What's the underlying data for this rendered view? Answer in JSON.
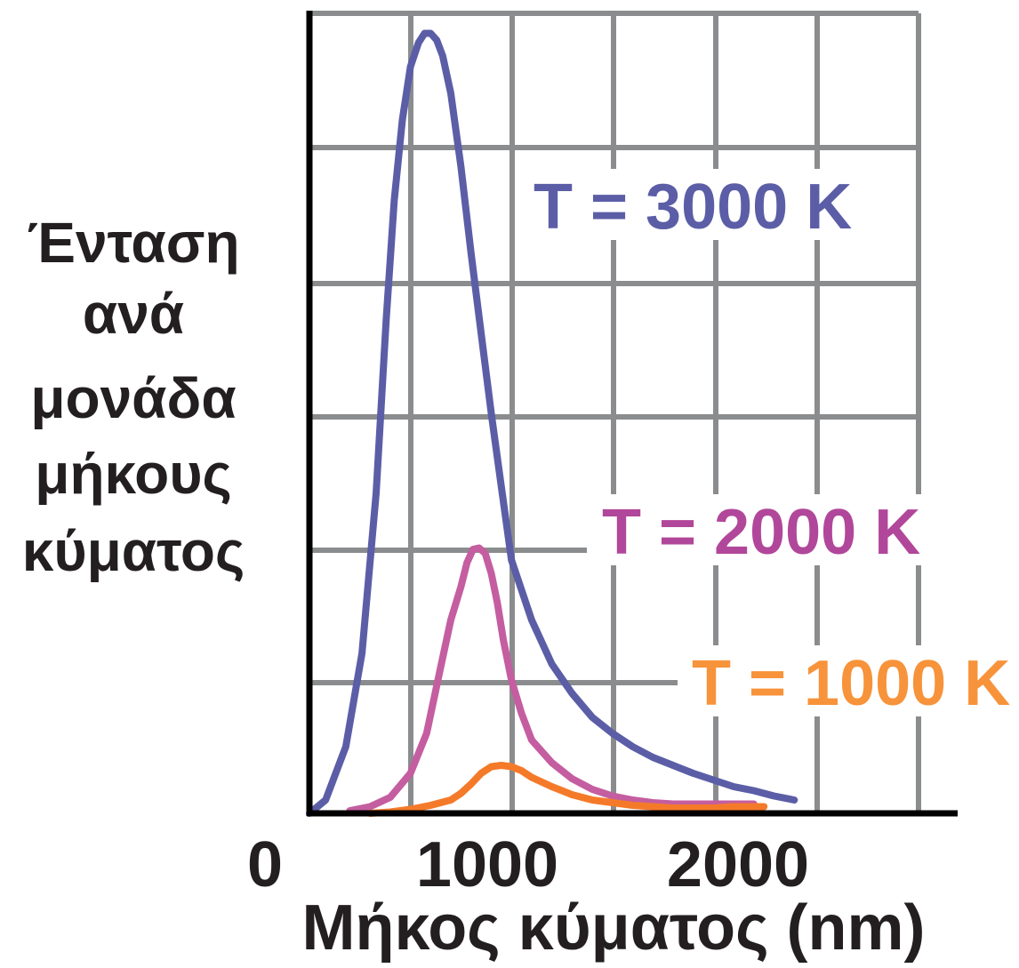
{
  "chart_data": {
    "type": "line",
    "ylabel_lines": [
      "Ένταση",
      "ανά",
      "μονάδα",
      "μήκους",
      "κύματος"
    ],
    "xlabel": "Μήκος κύματος (nm)",
    "x_ticks": [
      {
        "value": 0,
        "label": "0"
      },
      {
        "value": 1000,
        "label": "1000"
      },
      {
        "value": 2000,
        "label": "2000"
      }
    ],
    "xlim": [
      0,
      3200
    ],
    "ylim": [
      0,
      6
    ],
    "grid": true,
    "series": [
      {
        "name": "T = 3000 K",
        "color": "#5b5ea6",
        "x": [
          0,
          80,
          180,
          260,
          330,
          380,
          420,
          460,
          500,
          540,
          570,
          600,
          630,
          660,
          700,
          750,
          800,
          850,
          900,
          950,
          1000,
          1100,
          1200,
          1300,
          1400,
          1500,
          1600,
          1700,
          1800,
          1900,
          2000,
          2100,
          2200,
          2300,
          2400
        ],
        "y": [
          0,
          0.1,
          0.5,
          1.2,
          2.4,
          3.7,
          4.6,
          5.2,
          5.6,
          5.78,
          5.85,
          5.85,
          5.8,
          5.68,
          5.4,
          4.85,
          4.2,
          3.6,
          3.0,
          2.45,
          1.9,
          1.45,
          1.12,
          0.9,
          0.72,
          0.6,
          0.5,
          0.42,
          0.36,
          0.3,
          0.25,
          0.2,
          0.17,
          0.13,
          0.1
        ]
      },
      {
        "name": "T = 2000 K",
        "color": "#c45ea0",
        "x": [
          200,
          300,
          400,
          500,
          580,
          650,
          700,
          750,
          780,
          810,
          840,
          870,
          900,
          930,
          960,
          1000,
          1050,
          1100,
          1200,
          1300,
          1400,
          1500,
          1600,
          1700,
          1800,
          1900,
          2000,
          2100,
          2200
        ],
        "y": [
          0.02,
          0.05,
          0.12,
          0.3,
          0.6,
          1.1,
          1.45,
          1.7,
          1.88,
          1.98,
          1.99,
          1.95,
          1.8,
          1.58,
          1.3,
          1.0,
          0.75,
          0.55,
          0.38,
          0.26,
          0.18,
          0.13,
          0.1,
          0.08,
          0.07,
          0.07,
          0.07,
          0.07,
          0.07
        ]
      },
      {
        "name": "T = 1000 K",
        "color": "#f47a2a",
        "x": [
          300,
          400,
          500,
          600,
          700,
          750,
          800,
          850,
          900,
          950,
          1000,
          1050,
          1100,
          1200,
          1300,
          1400,
          1500,
          1600,
          1700,
          1800,
          1900,
          2000,
          2100,
          2250
        ],
        "y": [
          0.0,
          0.01,
          0.03,
          0.06,
          0.1,
          0.15,
          0.22,
          0.3,
          0.35,
          0.36,
          0.35,
          0.32,
          0.27,
          0.2,
          0.14,
          0.1,
          0.08,
          0.06,
          0.05,
          0.04,
          0.04,
          0.04,
          0.05,
          0.05
        ]
      }
    ],
    "series_labels": [
      {
        "text": "T = 3000 K",
        "color": "#5b5ea6"
      },
      {
        "text": "T = 2000 K",
        "color": "#b1479a"
      },
      {
        "text": "T = 1000 K",
        "color": "#f7933a"
      }
    ]
  }
}
